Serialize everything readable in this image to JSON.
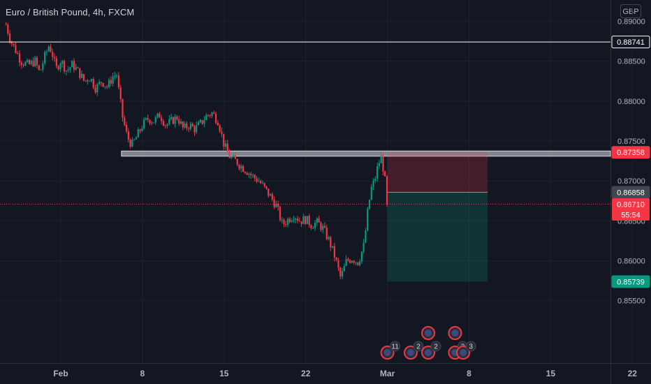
{
  "header": {
    "symbol_title": "Euro / British Pound, 4h, FXCM",
    "currency": "GBP"
  },
  "chart_data": {
    "type": "candlestick",
    "title": "Euro / British Pound, 4h, FXCM",
    "ylim": [
      0.8537,
      0.8913
    ],
    "y_ticks": [
      "0.89000",
      "0.88500",
      "0.88000",
      "0.87500",
      "0.87000",
      "0.86500",
      "0.86000",
      "0.85500"
    ],
    "x_ticks": [
      {
        "label": "Feb",
        "day": 1
      },
      {
        "label": "8",
        "day": 8
      },
      {
        "label": "15",
        "day": 15
      },
      {
        "label": "22",
        "day": 22
      },
      {
        "label": "Mar",
        "day": 29
      },
      {
        "label": "8",
        "day": 36
      },
      {
        "label": "15",
        "day": 43
      },
      {
        "label": "22",
        "day": 50
      }
    ],
    "price_path": [
      [
        -3.7,
        0.8896
      ],
      [
        -3.3,
        0.8876
      ],
      [
        -2.4,
        0.885
      ],
      [
        -1.8,
        0.8845
      ],
      [
        -1.2,
        0.885
      ],
      [
        -0.8,
        0.8835
      ],
      [
        -0.4,
        0.8855
      ],
      [
        0.0,
        0.887
      ],
      [
        0.3,
        0.8858
      ],
      [
        0.6,
        0.884
      ],
      [
        1.0,
        0.8851
      ],
      [
        1.5,
        0.8838
      ],
      [
        2.0,
        0.8846
      ],
      [
        2.6,
        0.8835
      ],
      [
        3.0,
        0.8825
      ],
      [
        3.5,
        0.883
      ],
      [
        4.0,
        0.8816
      ],
      [
        4.5,
        0.8825
      ],
      [
        5.0,
        0.8818
      ],
      [
        5.5,
        0.8832
      ],
      [
        5.8,
        0.8833
      ],
      [
        6.0,
        0.881
      ],
      [
        6.3,
        0.878
      ],
      [
        6.7,
        0.8755
      ],
      [
        7.1,
        0.8745
      ],
      [
        7.5,
        0.8755
      ],
      [
        8.0,
        0.877
      ],
      [
        8.5,
        0.8778
      ],
      [
        9.0,
        0.8775
      ],
      [
        9.5,
        0.8783
      ],
      [
        10.0,
        0.877
      ],
      [
        10.5,
        0.8775
      ],
      [
        11.0,
        0.878
      ],
      [
        11.5,
        0.8765
      ],
      [
        12.0,
        0.877
      ],
      [
        12.5,
        0.8765
      ],
      [
        13.0,
        0.8772
      ],
      [
        13.5,
        0.8782
      ],
      [
        14.0,
        0.8785
      ],
      [
        14.5,
        0.8775
      ],
      [
        15.0,
        0.8745
      ],
      [
        15.5,
        0.873
      ],
      [
        16.0,
        0.8725
      ],
      [
        16.5,
        0.8718
      ],
      [
        17.0,
        0.8712
      ],
      [
        17.5,
        0.8705
      ],
      [
        18.0,
        0.87
      ],
      [
        18.5,
        0.869
      ],
      [
        19.0,
        0.868
      ],
      [
        19.5,
        0.8668
      ],
      [
        20.0,
        0.8645
      ],
      [
        20.5,
        0.8652
      ],
      [
        21.0,
        0.8658
      ],
      [
        21.5,
        0.865
      ],
      [
        22.0,
        0.8652
      ],
      [
        22.5,
        0.8645
      ],
      [
        23.0,
        0.8648
      ],
      [
        23.5,
        0.864
      ],
      [
        24.0,
        0.8625
      ],
      [
        24.5,
        0.8605
      ],
      [
        25.0,
        0.8578
      ],
      [
        25.5,
        0.86
      ],
      [
        26.0,
        0.8603
      ],
      [
        26.5,
        0.8598
      ],
      [
        27.0,
        0.862
      ],
      [
        27.3,
        0.866
      ],
      [
        27.6,
        0.869
      ],
      [
        27.9,
        0.87
      ],
      [
        28.2,
        0.872
      ],
      [
        28.5,
        0.873
      ],
      [
        28.8,
        0.87
      ],
      [
        29.0,
        0.8671
      ]
    ],
    "horizontal_lines": [
      {
        "price": 0.88741,
        "label": "0.88741",
        "color": "#ffffff"
      }
    ],
    "zone": {
      "price_top": 0.87375,
      "price_bottom": 0.8731,
      "day_start": 6.2,
      "day_end": 50.0,
      "label": "0.87358"
    },
    "position": {
      "type": "short",
      "entry": 0.86858,
      "stop": 0.87358,
      "target": 0.85739,
      "day_start": 29.0,
      "day_end": 37.6,
      "entry_label": "0.86858",
      "target_label": "0.85739",
      "stop_color": "#f23645",
      "target_color": "#089981"
    },
    "current_price": {
      "price": 0.8671,
      "label": "0.86710",
      "countdown": "55:54",
      "color": "#f23645"
    },
    "partially_hidden_tick": "0.86500",
    "events": {
      "top_row": [
        {
          "day": 32.5
        },
        {
          "day": 34.8
        }
      ],
      "bottom_row": [
        {
          "day": 29.0,
          "count": "11"
        },
        {
          "day": 31.0,
          "count": "2"
        },
        {
          "day": 32.5,
          "count": "2"
        },
        {
          "day": 34.8,
          "count": "2"
        },
        {
          "day": 35.5,
          "count": "3"
        }
      ]
    },
    "colors": {
      "background": "#131722",
      "up": "#089981",
      "down": "#f23645",
      "grid": "#1e222d",
      "axis_text": "#b2b5be"
    }
  }
}
